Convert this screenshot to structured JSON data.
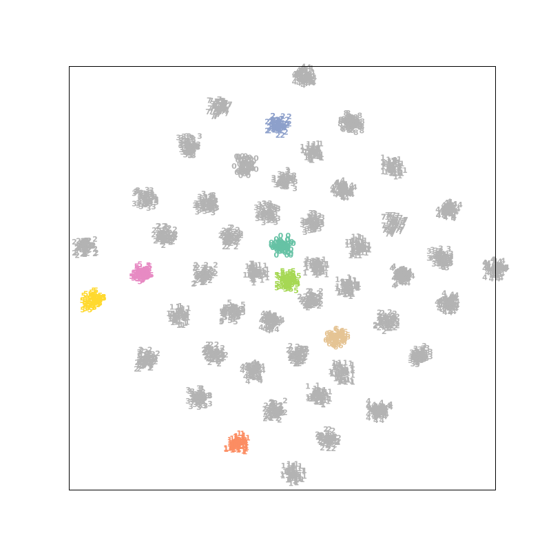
{
  "chart_data": {
    "type": "scatter",
    "title": "",
    "xlabel": "",
    "ylabel": "",
    "xlim": [
      -62,
      62
    ],
    "ylim": [
      -62,
      62
    ],
    "ticks": "none",
    "grid": false,
    "legend": "none",
    "marker": "text-glyph",
    "background_color": "#b3b3b3",
    "clusters": [
      {
        "label": "4",
        "x": 6.6,
        "y": 59.0,
        "color": "#b3b3b3"
      },
      {
        "label": "7",
        "x": -18.4,
        "y": 50.0,
        "color": "#b3b3b3"
      },
      {
        "label": "2",
        "x": -1.2,
        "y": 44.6,
        "color": "#8da0cb"
      },
      {
        "label": "8",
        "x": 20.0,
        "y": 45.4,
        "color": "#b3b3b3"
      },
      {
        "label": "3",
        "x": -27.2,
        "y": 38.6,
        "color": "#b3b3b3"
      },
      {
        "label": "1",
        "x": 9.0,
        "y": 37.2,
        "color": "#b3b3b3"
      },
      {
        "label": "1",
        "x": 32.4,
        "y": 32.4,
        "color": "#b3b3b3"
      },
      {
        "label": "0",
        "x": -10.8,
        "y": 32.8,
        "color": "#b3b3b3"
      },
      {
        "label": "3",
        "x": 0.6,
        "y": 28.8,
        "color": "#b3b3b3"
      },
      {
        "label": "4",
        "x": 17.8,
        "y": 25.8,
        "color": "#b3b3b3"
      },
      {
        "label": "3",
        "x": -39.8,
        "y": 23.2,
        "color": "#b3b3b3"
      },
      {
        "label": "3",
        "x": -22.2,
        "y": 21.8,
        "color": "#b3b3b3"
      },
      {
        "label": "4",
        "x": 48.4,
        "y": 20.2,
        "color": "#b3b3b3"
      },
      {
        "label": "3",
        "x": -4.4,
        "y": 19.0,
        "color": "#b3b3b3"
      },
      {
        "label": "3",
        "x": 9.0,
        "y": 16.2,
        "color": "#b3b3b3"
      },
      {
        "label": "7",
        "x": 32.6,
        "y": 15.6,
        "color": "#b3b3b3"
      },
      {
        "label": "2",
        "x": -34.2,
        "y": 12.4,
        "color": "#b3b3b3"
      },
      {
        "label": "2",
        "x": -15.2,
        "y": 12.0,
        "color": "#b3b3b3"
      },
      {
        "label": "0",
        "x": 0.0,
        "y": 9.6,
        "color": "#66c2a5"
      },
      {
        "label": "1",
        "x": 22.0,
        "y": 9.4,
        "color": "#b3b3b3"
      },
      {
        "label": "2",
        "x": -57.2,
        "y": 9.0,
        "color": "#b3b3b3"
      },
      {
        "label": "3",
        "x": 45.8,
        "y": 5.8,
        "color": "#b3b3b3"
      },
      {
        "label": "1",
        "x": 9.8,
        "y": 3.6,
        "color": "#b3b3b3"
      },
      {
        "label": "4",
        "x": 62.0,
        "y": 2.6,
        "color": "#b3b3b3"
      },
      {
        "label": "5",
        "x": -40.6,
        "y": 1.2,
        "color": "#e78ac3"
      },
      {
        "label": "2",
        "x": -22.6,
        "y": 1.0,
        "color": "#b3b3b3"
      },
      {
        "label": "1",
        "x": -7.6,
        "y": 1.4,
        "color": "#b3b3b3"
      },
      {
        "label": "4",
        "x": 34.6,
        "y": 0.6,
        "color": "#b3b3b3"
      },
      {
        "label": "5",
        "x": 1.6,
        "y": -0.8,
        "color": "#a6d854"
      },
      {
        "label": "1",
        "x": 19.0,
        "y": -2.6,
        "color": "#b3b3b3"
      },
      {
        "label": "5",
        "x": -55.0,
        "y": -6.4,
        "color": "#ffd92f"
      },
      {
        "label": "2",
        "x": 8.0,
        "y": -6.6,
        "color": "#b3b3b3"
      },
      {
        "label": "4",
        "x": 48.2,
        "y": -7.2,
        "color": "#b3b3b3"
      },
      {
        "label": "5",
        "x": -14.6,
        "y": -10.0,
        "color": "#b3b3b3"
      },
      {
        "label": "1",
        "x": -29.8,
        "y": -11.0,
        "color": "#b3b3b3"
      },
      {
        "label": "4",
        "x": -3.2,
        "y": -12.6,
        "color": "#b3b3b3"
      },
      {
        "label": "2",
        "x": 30.2,
        "y": -12.8,
        "color": "#b3b3b3"
      },
      {
        "label": "6",
        "x": 15.8,
        "y": -17.4,
        "color": "#e5c494"
      },
      {
        "label": "2",
        "x": -39.4,
        "y": -23.8,
        "color": "#b3b3b3"
      },
      {
        "label": "2",
        "x": -19.6,
        "y": -22.2,
        "color": "#b3b3b3"
      },
      {
        "label": "2",
        "x": 4.8,
        "y": -22.2,
        "color": "#b3b3b3"
      },
      {
        "label": "3",
        "x": 39.8,
        "y": -22.4,
        "color": "#b3b3b3"
      },
      {
        "label": "4",
        "x": -8.4,
        "y": -27.4,
        "color": "#b3b3b3"
      },
      {
        "label": "1",
        "x": 17.2,
        "y": -27.6,
        "color": "#b3b3b3"
      },
      {
        "label": "3",
        "x": -24.2,
        "y": -35.0,
        "color": "#b3b3b3"
      },
      {
        "label": "1",
        "x": 10.6,
        "y": -34.2,
        "color": "#b3b3b3"
      },
      {
        "label": "2",
        "x": -2.4,
        "y": -38.6,
        "color": "#b3b3b3"
      },
      {
        "label": "4",
        "x": 28.2,
        "y": -38.8,
        "color": "#b3b3b3"
      },
      {
        "label": "2",
        "x": 13.2,
        "y": -47.0,
        "color": "#b3b3b3"
      },
      {
        "label": "1",
        "x": -13.2,
        "y": -48.2,
        "color": "#fc8d62"
      },
      {
        "label": "1",
        "x": 3.2,
        "y": -57.2,
        "color": "#b3b3b3"
      }
    ]
  }
}
